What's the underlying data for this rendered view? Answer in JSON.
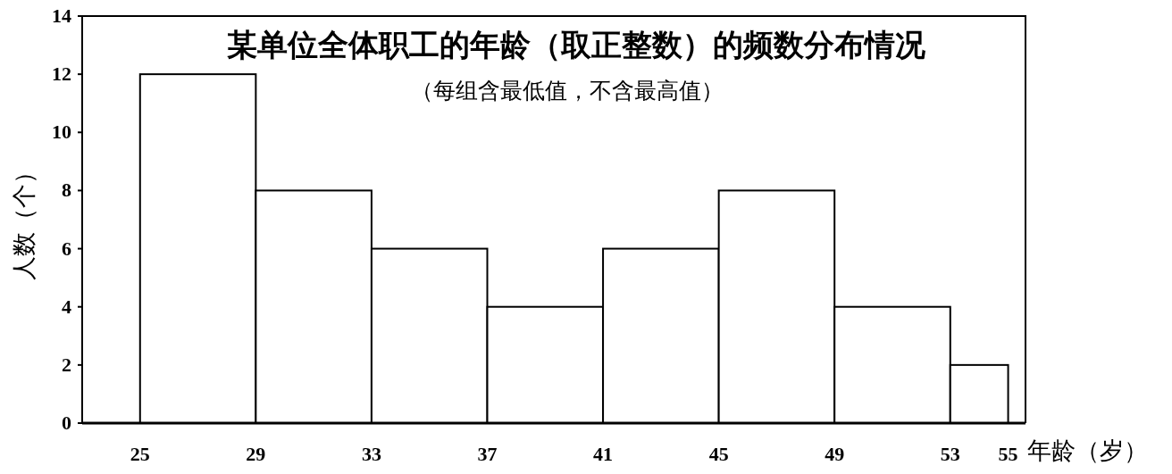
{
  "chart_data": {
    "type": "histogram",
    "title": "某单位全体职工的年龄（取正整数）的频数分布情况",
    "subtitle": "（每组含最低值，不含最高值）",
    "xlabel": "年龄（岁）",
    "ylabel": "人数（个）",
    "bins": [
      25,
      29,
      33,
      37,
      41,
      45,
      49,
      53,
      55
    ],
    "values": [
      12,
      8,
      6,
      4,
      6,
      8,
      4,
      2
    ],
    "color": "#ffffff",
    "xlim": [
      23,
      55.6
    ],
    "xticks": [
      25,
      29,
      33,
      37,
      41,
      45,
      49,
      53,
      55
    ],
    "ylim": [
      0,
      14
    ],
    "yticks": [
      0,
      2,
      4,
      6,
      8,
      10,
      12,
      14
    ],
    "grid": false
  }
}
